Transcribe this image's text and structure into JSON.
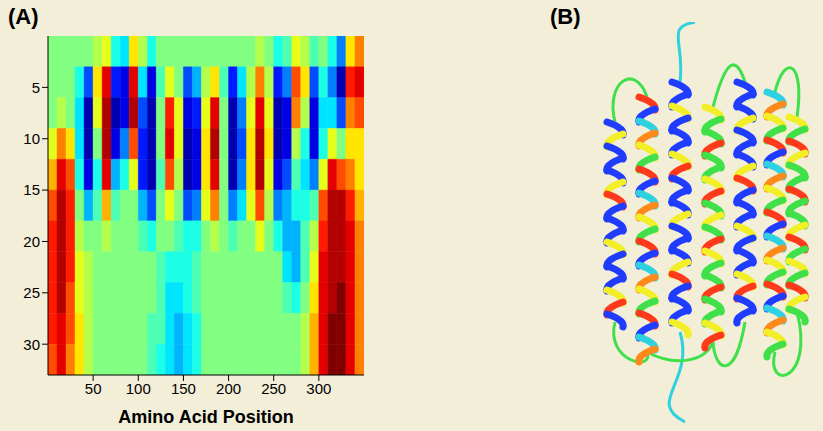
{
  "chart_data": {
    "type": "heatmap",
    "x_label": "Amino Acid Position",
    "xlim": [
      0,
      350
    ],
    "xticks": [
      50,
      100,
      150,
      200,
      250,
      300
    ],
    "ylim": [
      0,
      33
    ],
    "yticks": [
      5,
      10,
      15,
      20,
      25,
      30
    ],
    "color": "jet",
    "color_range": [
      -1,
      1
    ],
    "x_edges": [
      0,
      10,
      20,
      30,
      40,
      50,
      60,
      70,
      80,
      90,
      100,
      110,
      120,
      130,
      140,
      150,
      160,
      170,
      180,
      190,
      200,
      210,
      220,
      230,
      240,
      250,
      260,
      270,
      280,
      290,
      300,
      310,
      320,
      330,
      340,
      350
    ],
    "y_edges": [
      0,
      3,
      6,
      9,
      12,
      15,
      18,
      21,
      24,
      27,
      30,
      33
    ],
    "cells": [
      [
        0,
        0,
        0,
        0.2,
        0.4,
        0.6,
        0.7,
        0.7,
        0.7,
        0.7,
        0.6
      ],
      [
        0,
        0,
        0.1,
        0.5,
        0.8,
        0.9,
        0.9,
        0.9,
        0.9,
        0.8,
        0.8
      ],
      [
        0,
        0,
        0,
        0.3,
        0.6,
        0.7,
        0.7,
        0.7,
        0.6,
        0.6,
        0.5
      ],
      [
        0,
        -0.2,
        -0.3,
        -0.3,
        -0.2,
        0,
        0.1,
        0.2,
        0.2,
        0.3,
        0.3
      ],
      [
        0,
        -0.6,
        -0.9,
        -0.9,
        -0.8,
        -0.4,
        0,
        0.1,
        0.1,
        0.1,
        0.1
      ],
      [
        0.1,
        0.3,
        0.2,
        0,
        -0.2,
        -0.1,
        0,
        0,
        0,
        0,
        0
      ],
      [
        0.2,
        0.8,
        0.9,
        0.9,
        0.8,
        0.4,
        0.1,
        0,
        0,
        0,
        0
      ],
      [
        -0.2,
        -0.7,
        -0.9,
        -0.8,
        -0.4,
        -0.1,
        0,
        0,
        0,
        0,
        0
      ],
      [
        -0.3,
        -0.8,
        -0.8,
        -0.5,
        -0.2,
        0,
        0,
        0,
        0,
        0,
        0
      ],
      [
        0.3,
        0.8,
        0.9,
        0.6,
        0.2,
        0,
        0,
        0,
        0,
        0,
        0
      ],
      [
        0.1,
        -0.3,
        -0.6,
        -0.7,
        -0.7,
        -0.4,
        -0.1,
        0,
        0,
        0,
        0
      ],
      [
        -0.2,
        -0.8,
        -0.9,
        -0.9,
        -0.9,
        -0.6,
        -0.2,
        0,
        0,
        -0.1,
        -0.1
      ],
      [
        0,
        -0.1,
        0,
        0,
        -0.1,
        0,
        0,
        -0.1,
        -0.1,
        -0.1,
        -0.2
      ],
      [
        0,
        0.2,
        0.7,
        0.8,
        0.6,
        0.2,
        0,
        -0.2,
        -0.3,
        -0.3,
        -0.3
      ],
      [
        0,
        0,
        0.2,
        0.2,
        0.1,
        0,
        -0.1,
        -0.2,
        -0.3,
        -0.4,
        -0.4
      ],
      [
        0,
        -0.6,
        -0.8,
        -0.9,
        -0.9,
        -0.6,
        -0.2,
        -0.2,
        -0.2,
        -0.3,
        -0.3
      ],
      [
        0,
        -0.4,
        -0.7,
        -0.8,
        -0.8,
        -0.5,
        -0.2,
        -0.1,
        -0.1,
        -0.2,
        -0.2
      ],
      [
        0,
        0.1,
        0.2,
        0.3,
        0.3,
        0.2,
        0,
        0,
        0,
        0,
        0
      ],
      [
        0,
        0.3,
        0.8,
        0.9,
        0.8,
        0.5,
        0.1,
        0,
        0,
        0,
        0
      ],
      [
        0,
        -0.1,
        0,
        0,
        0,
        0,
        0,
        0,
        0,
        0,
        0
      ],
      [
        0,
        -0.7,
        -0.9,
        -0.9,
        -0.9,
        -0.5,
        -0.1,
        0,
        0,
        0,
        0
      ],
      [
        0,
        -0.3,
        -0.5,
        -0.6,
        -0.5,
        -0.3,
        0,
        0,
        0,
        0,
        0
      ],
      [
        0,
        0.1,
        0.2,
        0.3,
        0.3,
        0.2,
        0,
        0,
        0,
        0,
        0
      ],
      [
        0.1,
        0.5,
        0.8,
        0.9,
        0.9,
        0.6,
        0.2,
        0,
        0,
        0,
        0
      ],
      [
        0,
        0.1,
        0.2,
        0.3,
        0.2,
        0.1,
        0,
        0,
        0,
        0,
        0
      ],
      [
        -0.2,
        -0.7,
        -0.9,
        -0.9,
        -0.8,
        -0.5,
        -0.2,
        0,
        0,
        0,
        0
      ],
      [
        -0.1,
        -0.5,
        -0.8,
        -0.8,
        -0.6,
        -0.4,
        -0.4,
        -0.3,
        -0.1,
        0,
        0
      ],
      [
        0.2,
        0.6,
        0.5,
        0.1,
        -0.1,
        -0.2,
        -0.4,
        -0.4,
        -0.2,
        0,
        0
      ],
      [
        0.1,
        0.3,
        0.1,
        -0.2,
        -0.3,
        -0.2,
        -0.1,
        -0.1,
        0,
        0.1,
        0.1
      ],
      [
        -0.1,
        -0.6,
        -0.8,
        -0.8,
        -0.5,
        -0.1,
        0.1,
        0.2,
        0.3,
        0.4,
        0.4
      ],
      [
        0,
        -0.2,
        -0.3,
        -0.2,
        0.2,
        0.6,
        0.7,
        0.8,
        0.8,
        0.8,
        0.8
      ],
      [
        -0.2,
        -0.5,
        -0.3,
        0.2,
        0.8,
        0.9,
        0.9,
        0.9,
        0.9,
        1.0,
        1.0
      ],
      [
        -0.5,
        -0.9,
        -0.6,
        0,
        0.6,
        0.9,
        0.9,
        0.9,
        1.0,
        1.0,
        1.0
      ],
      [
        0.3,
        0.7,
        0.5,
        0.3,
        0.5,
        0.7,
        0.8,
        0.8,
        0.8,
        0.8,
        0.8
      ],
      [
        0.5,
        0.8,
        0.6,
        0.3,
        0.3,
        0.4,
        0.5,
        0.5,
        0.5,
        0.5,
        0.5
      ]
    ]
  },
  "panel_labels": [
    "(A)",
    "(B)"
  ]
}
